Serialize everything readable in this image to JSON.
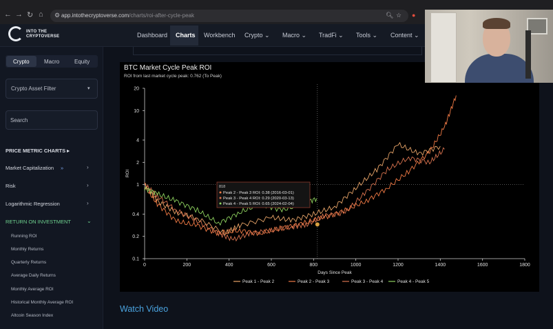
{
  "browser": {
    "back": "←",
    "forward": "→",
    "reload": "↻",
    "home": "⌂",
    "url_host": "app.intothecryptoverse.com",
    "url_path": "/charts/roi-after-cycle-peak"
  },
  "logo": {
    "line1": "INTO THE",
    "line2": "CRYPTOVERSE"
  },
  "nav": [
    {
      "label": "Dashboard"
    },
    {
      "label": "Charts"
    },
    {
      "label": "Workbench"
    },
    {
      "label": "Crypto ⌄"
    },
    {
      "label": "Macro ⌄"
    },
    {
      "label": "TradFi ⌄"
    },
    {
      "label": "Tools ⌄"
    },
    {
      "label": "Content ⌄"
    }
  ],
  "sidebar": {
    "tabs": [
      "Crypto",
      "Macro",
      "Equity"
    ],
    "filter_label": "Crypto Asset Filter",
    "search_placeholder": "Search",
    "section_title": "PRICE METRIC CHARTS ▸",
    "items": [
      {
        "label": "Market Capitalization"
      },
      {
        "label": "Risk"
      },
      {
        "label": "Logarithmic Regression"
      },
      {
        "label": "RETURN ON INVESTMENT"
      }
    ],
    "sub_items": [
      "Running ROI",
      "Monthly Returns",
      "Quarterly Returns",
      "Average Daily Returns",
      "Monthly Average ROI",
      "Historical Monthly Average ROI",
      "Altcoin Season Index"
    ]
  },
  "chart": {
    "title": "BTC Market Cycle Peak ROI",
    "subtitle": "ROI from last market cycle peak: 0.762 (To Peak)",
    "watch_video": "Watch Video"
  },
  "chart_data": {
    "type": "line",
    "title": "BTC Market Cycle Peak ROI",
    "xlabel": "Days Since Peak",
    "ylabel": "ROI",
    "xlim": [
      0,
      1800
    ],
    "ylim": [
      0.1,
      20
    ],
    "yscale": "log",
    "x_ticks": [
      0,
      200,
      400,
      600,
      800,
      1000,
      1200,
      1400,
      1600,
      1800
    ],
    "y_ticks": [
      0.1,
      0.2,
      0.4,
      1,
      2,
      4,
      10,
      20
    ],
    "grid": false,
    "legend_position": "bottom",
    "series": [
      {
        "name": "Peak 1 - Peak 2",
        "color": "#e8a468",
        "x": [
          0,
          60,
          150,
          250,
          380,
          450,
          600,
          700,
          800,
          900,
          1000,
          1100,
          1200,
          1300,
          1400
        ],
        "y": [
          1.0,
          0.6,
          0.42,
          0.35,
          0.22,
          0.28,
          0.36,
          0.33,
          0.4,
          0.5,
          0.9,
          1.6,
          3.5,
          2.6,
          3.3
        ]
      },
      {
        "name": "Peak 2 - Peak 3",
        "color": "#f07a45",
        "x": [
          0,
          60,
          150,
          250,
          350,
          450,
          550,
          650,
          750,
          850,
          950,
          1050,
          1150,
          1250,
          1350,
          1420,
          1475
        ],
        "y": [
          0.95,
          0.55,
          0.32,
          0.28,
          0.22,
          0.24,
          0.22,
          0.26,
          0.3,
          0.36,
          0.45,
          0.6,
          0.9,
          1.5,
          2.8,
          6.0,
          16.0
        ]
      },
      {
        "name": "Peak 3 - Peak 4",
        "color": "#d9734f",
        "x": [
          0,
          60,
          150,
          250,
          350,
          420,
          500,
          600,
          700,
          770,
          850,
          950,
          1050,
          1150,
          1250,
          1350,
          1420
        ],
        "y": [
          1.0,
          0.7,
          0.45,
          0.32,
          0.22,
          0.18,
          0.22,
          0.24,
          0.27,
          0.29,
          0.38,
          0.42,
          0.8,
          1.6,
          2.3,
          2.0,
          3.0
        ]
      },
      {
        "name": "Peak 4 - Peak 5",
        "color": "#8fd35f",
        "x": [
          0,
          60,
          150,
          250,
          350,
          450,
          550,
          650,
          750,
          815
        ],
        "y": [
          0.9,
          0.75,
          0.6,
          0.45,
          0.3,
          0.42,
          0.55,
          0.45,
          0.55,
          0.65
        ]
      }
    ],
    "tooltip": {
      "header": "818",
      "lines": [
        "Peak 2 - Peak 3 ROI: 0.38 (2016-03-01)",
        "Peak 3 - Peak 4 ROI: 0.29 (2020-03-13)",
        "Peak 4 - Peak 5 ROI: 0.65 (2024-02-04)"
      ],
      "x": 818
    }
  },
  "colors": {
    "accent": "#4aa3df",
    "green": "#6fd38f"
  }
}
